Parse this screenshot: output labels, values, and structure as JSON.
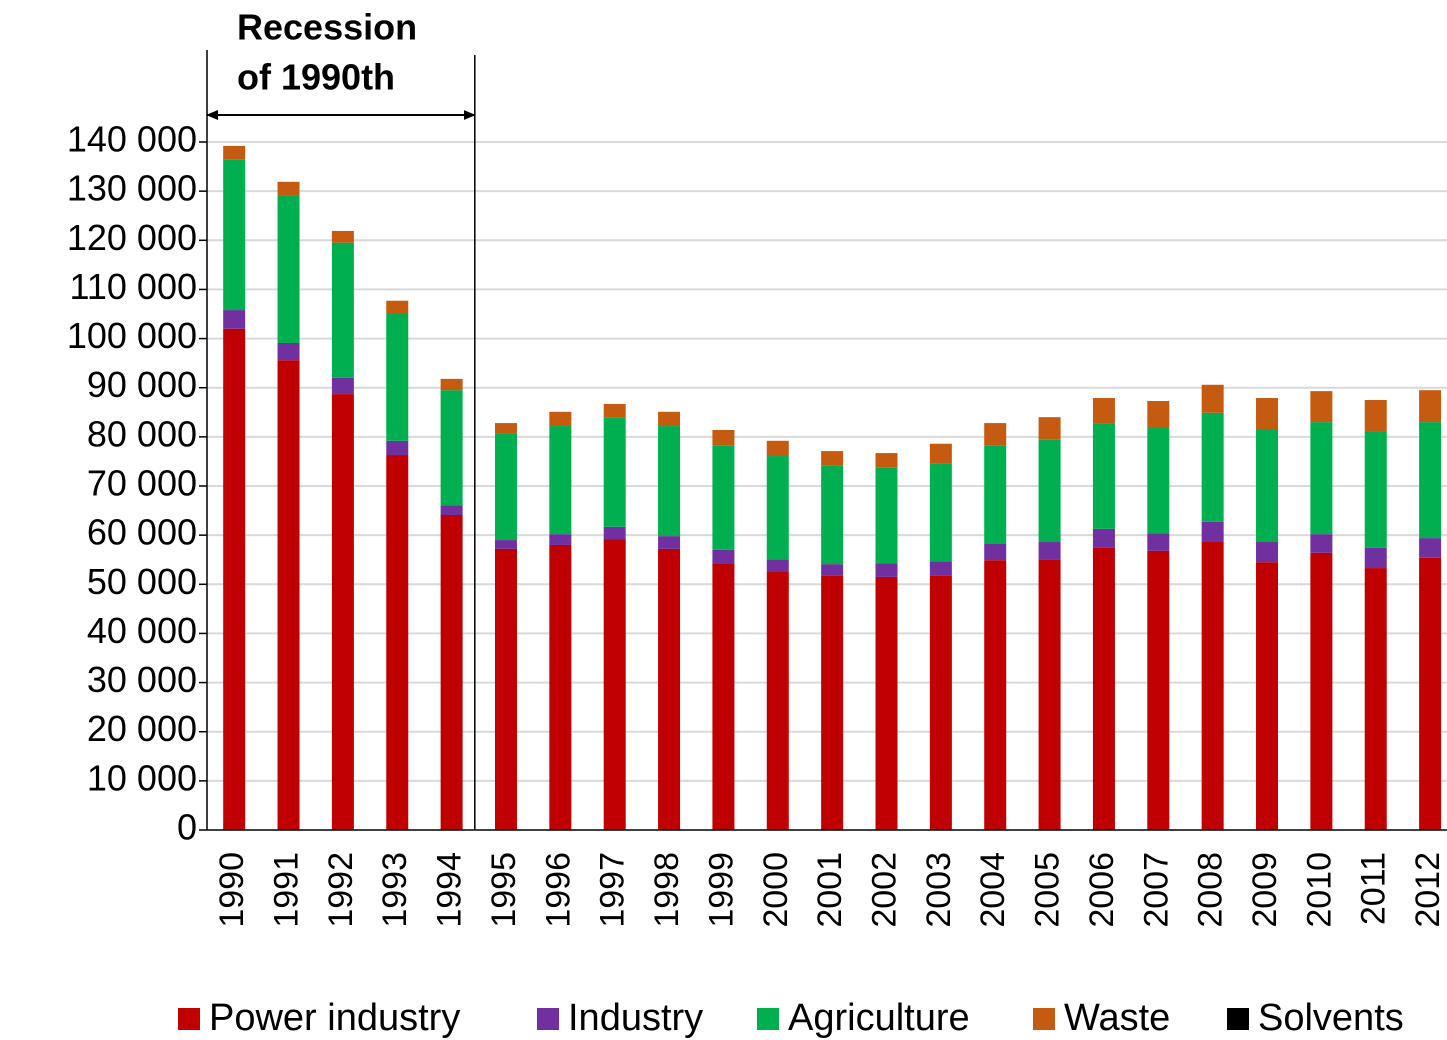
{
  "chart_data": {
    "type": "stacked_bar",
    "annotation": [
      "Recession",
      "of 1990th"
    ],
    "categories": [
      "1990",
      "1991",
      "1992",
      "1993",
      "1994",
      "1995",
      "1996",
      "1997",
      "1998",
      "1999",
      "2000",
      "2001",
      "2002",
      "2003",
      "2004",
      "2005",
      "2006",
      "2007",
      "2008",
      "2009",
      "2010",
      "2011",
      "2012"
    ],
    "series": [
      {
        "name": "Power industry",
        "color": "#c00000",
        "values": [
          102000,
          95600,
          88700,
          76300,
          64100,
          57200,
          58000,
          59200,
          57200,
          54300,
          52500,
          51700,
          51500,
          51700,
          54900,
          55100,
          57400,
          56800,
          58600,
          54500,
          56400,
          53300,
          55400
        ]
      },
      {
        "name": "Industry",
        "color": "#7030a0",
        "values": [
          3800,
          3500,
          3300,
          2900,
          2000,
          1800,
          2200,
          2500,
          2600,
          2700,
          2600,
          2400,
          2800,
          3000,
          3300,
          3500,
          3900,
          3600,
          4100,
          4100,
          3800,
          4100,
          4000
        ]
      },
      {
        "name": "Agriculture",
        "color": "#00b050",
        "values": [
          30700,
          30100,
          27500,
          25800,
          23400,
          21600,
          22000,
          22300,
          22400,
          21300,
          21000,
          20000,
          19400,
          19800,
          20100,
          20800,
          21500,
          21400,
          22200,
          23000,
          22800,
          23600,
          23600
        ]
      },
      {
        "name": "Waste",
        "color": "#c55a11",
        "values": [
          2700,
          2700,
          2400,
          2700,
          2300,
          2200,
          2900,
          2700,
          2900,
          3100,
          3100,
          3000,
          3000,
          4100,
          4500,
          4600,
          5100,
          5500,
          5700,
          6300,
          6300,
          6500,
          6500
        ]
      },
      {
        "name": "Solvents",
        "color": "#000000",
        "values": [
          0,
          0,
          0,
          0,
          0,
          0,
          0,
          0,
          0,
          0,
          0,
          0,
          0,
          0,
          0,
          0,
          0,
          0,
          0,
          0,
          0,
          0,
          0
        ]
      }
    ],
    "ylim": [
      0,
      140000
    ],
    "yticks": [
      0,
      {
        "value": 10000,
        "label": "10 000"
      },
      {
        "value": 20000,
        "label": "20 000"
      },
      {
        "value": 30000,
        "label": "30 000"
      },
      {
        "value": 40000,
        "label": "40 000"
      },
      {
        "value": 50000,
        "label": "50 000"
      },
      {
        "value": 60000,
        "label": "60 000"
      },
      {
        "value": 70000,
        "label": "70 000"
      },
      {
        "value": 80000,
        "label": "80 000"
      },
      {
        "value": 90000,
        "label": "90 000"
      },
      {
        "value": 100000,
        "label": "100 000"
      },
      {
        "value": 110000,
        "label": "110 000"
      },
      {
        "value": 120000,
        "label": "120 000"
      },
      {
        "value": 130000,
        "label": "130 000"
      },
      {
        "value": 140000,
        "label": "140 000"
      }
    ],
    "grid": true
  }
}
